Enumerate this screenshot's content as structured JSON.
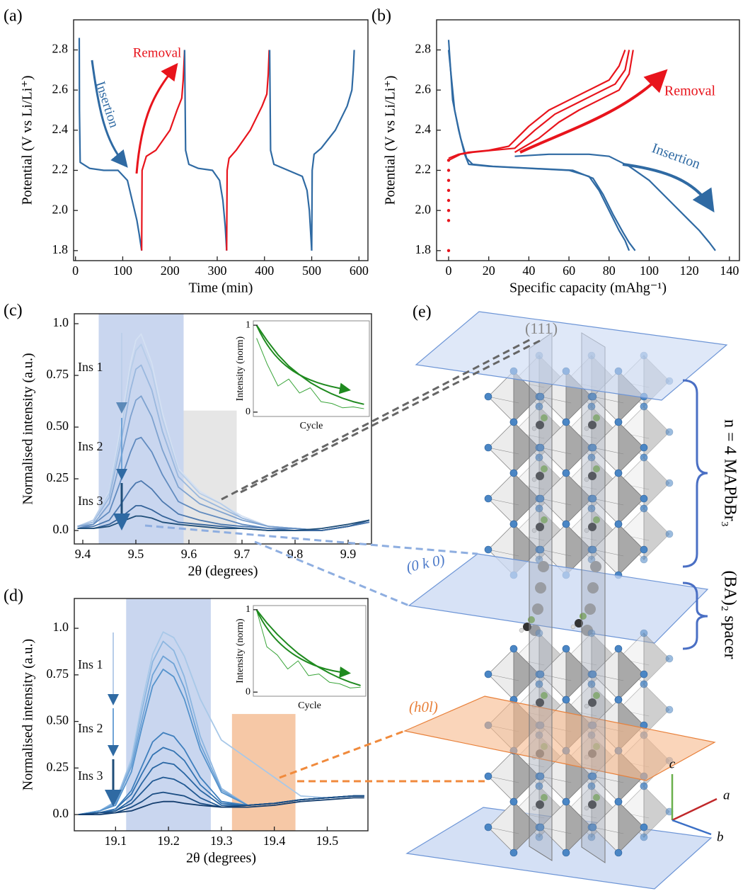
{
  "chart_data": [
    {
      "type": "line",
      "panel_label": "(a)",
      "xlabel": "Time (min)",
      "ylabel": "Potential (V vs Li/Li⁺)",
      "xlim": [
        -4,
        619
      ],
      "ylim": [
        1.75,
        2.95
      ],
      "xticks": [
        0,
        100,
        200,
        300,
        400,
        500,
        600
      ],
      "yticks": [
        1.8,
        {
          "value": 2,
          "label": "2.0"
        },
        2.2,
        2.4,
        2.6,
        2.8
      ],
      "annotations": [
        {
          "text": "Removal",
          "color": "#e8141c"
        },
        {
          "text": "Insertion",
          "color": "#2f6aa3"
        }
      ],
      "series": [
        {
          "color": "#2f6aa3",
          "x": [
            8,
            8.5,
            10,
            30,
            60,
            90,
            110,
            120,
            130,
            135,
            140
          ],
          "values": [
            2.86,
            2.5,
            2.24,
            2.21,
            2.2,
            2.2,
            2.15,
            2.05,
            1.95,
            1.88,
            1.8
          ]
        },
        {
          "color": "#e8141c",
          "x": [
            140,
            141,
            150,
            170,
            200,
            215,
            225,
            228,
            231
          ],
          "values": [
            1.8,
            2.2,
            2.27,
            2.3,
            2.4,
            2.5,
            2.56,
            2.65,
            2.8
          ]
        },
        {
          "color": "#2f6aa3",
          "x": [
            231,
            233,
            240,
            260,
            290,
            305,
            312,
            317,
            320
          ],
          "values": [
            2.8,
            2.3,
            2.23,
            2.21,
            2.2,
            2.15,
            2.05,
            1.92,
            1.8
          ]
        },
        {
          "color": "#e8141c",
          "x": [
            320,
            321,
            325,
            340,
            370,
            395,
            405,
            408,
            410
          ],
          "values": [
            1.8,
            2.2,
            2.26,
            2.3,
            2.4,
            2.52,
            2.58,
            2.68,
            2.8
          ]
        },
        {
          "color": "#2f6aa3",
          "x": [
            411,
            413,
            420,
            450,
            480,
            490,
            495,
            498,
            500
          ],
          "values": [
            2.8,
            2.3,
            2.23,
            2.2,
            2.17,
            2.1,
            2.0,
            1.88,
            1.8
          ]
        },
        {
          "color": "#2f6aa3",
          "x": [
            500,
            501,
            505,
            520,
            550,
            575,
            585,
            588,
            590
          ],
          "values": [
            1.8,
            2.2,
            2.28,
            2.31,
            2.4,
            2.52,
            2.6,
            2.7,
            2.8
          ]
        }
      ]
    },
    {
      "type": "line",
      "panel_label": "(b)",
      "xlabel": "Specific capacity (mAhg⁻¹)",
      "ylabel": "Potential (V vs Li/Li⁺)",
      "xlim": [
        -6,
        145
      ],
      "ylim": [
        1.75,
        2.95
      ],
      "xticks": [
        0,
        20,
        40,
        60,
        80,
        100,
        120,
        140
      ],
      "yticks": [
        1.8,
        {
          "value": 2,
          "label": "2.0"
        },
        2.2,
        2.4,
        2.6,
        2.8
      ],
      "annotations": [
        {
          "text": "Removal",
          "color": "#e8141c"
        },
        {
          "text": "Insertion",
          "color": "#2f6aa3"
        }
      ],
      "series": [
        {
          "color": "#2f6aa3",
          "x": [
            0,
            2,
            5,
            8,
            10,
            20,
            40,
            60,
            70,
            75,
            80,
            85,
            88,
            90
          ],
          "values": [
            2.85,
            2.55,
            2.4,
            2.28,
            2.23,
            2.22,
            2.21,
            2.2,
            2.17,
            2.1,
            2.0,
            1.9,
            1.85,
            1.8
          ]
        },
        {
          "color": "#2f6aa3",
          "x": [
            0,
            3,
            6,
            9,
            12,
            22,
            42,
            62,
            72,
            77,
            82,
            87,
            90,
            93
          ],
          "values": [
            2.8,
            2.5,
            2.36,
            2.26,
            2.23,
            2.22,
            2.21,
            2.2,
            2.16,
            2.08,
            1.98,
            1.89,
            1.84,
            1.8
          ]
        },
        {
          "color": "#2f6aa3",
          "x": [
            33,
            50,
            70,
            80,
            90,
            100,
            110,
            120,
            125,
            130,
            133
          ],
          "values": [
            2.27,
            2.28,
            2.28,
            2.27,
            2.22,
            2.15,
            2.05,
            1.95,
            1.9,
            1.84,
            1.8
          ]
        },
        {
          "color": "#e8141c",
          "x": [
            0,
            5,
            10,
            20,
            30,
            40,
            50,
            60,
            70,
            80,
            85,
            88
          ],
          "values": [
            2.26,
            2.28,
            2.29,
            2.3,
            2.32,
            2.42,
            2.5,
            2.55,
            2.6,
            2.65,
            2.72,
            2.8
          ]
        },
        {
          "color": "#e8141c",
          "x": [
            0,
            6,
            12,
            22,
            33,
            43,
            53,
            63,
            73,
            83,
            88,
            90
          ],
          "values": [
            2.25,
            2.28,
            2.29,
            2.3,
            2.31,
            2.4,
            2.48,
            2.53,
            2.58,
            2.63,
            2.7,
            2.8
          ]
        },
        {
          "color": "#e8141c",
          "x": [
            33,
            45,
            55,
            65,
            75,
            85,
            90,
            92
          ],
          "values": [
            2.29,
            2.36,
            2.44,
            2.5,
            2.55,
            2.6,
            2.68,
            2.8
          ]
        },
        {
          "color": "#e8141c",
          "markers": true,
          "x": [
            0,
            0,
            0,
            0,
            0,
            0,
            0,
            0
          ],
          "values": [
            1.8,
            1.95,
            2.0,
            2.05,
            2.1,
            2.15,
            2.2,
            2.25
          ]
        }
      ]
    },
    {
      "type": "line",
      "panel_label": "(c)",
      "xlabel": "2θ (degrees)",
      "ylabel": "Normalised intensity (a.u.)",
      "xlim": [
        9.384,
        9.944
      ],
      "ylim": [
        -0.065,
        1.048
      ],
      "xticks": [
        9.4,
        9.5,
        9.6,
        9.7,
        9.8,
        9.9
      ],
      "yticks": [
        {
          "value": 0,
          "label": "0.0"
        },
        0.25,
        {
          "value": 0.5,
          "label": "0.50"
        },
        0.75,
        {
          "value": 1,
          "label": "1.0"
        }
      ],
      "spans": [
        {
          "x": [
            9.43,
            9.59
          ],
          "color": "#c9d6ef"
        },
        {
          "x": [
            9.59,
            9.69
          ],
          "top": 0.58,
          "color": "#e6e6e6"
        }
      ],
      "annotations": [
        {
          "text": "Ins 1",
          "color": "#111"
        },
        {
          "text": "Ins 2",
          "color": "#111"
        },
        {
          "text": "Ins 3",
          "color": "#111"
        }
      ],
      "x": [
        9.39,
        9.42,
        9.45,
        9.47,
        9.49,
        9.5,
        9.51,
        9.53,
        9.55,
        9.58,
        9.62,
        9.66,
        9.7,
        9.75,
        9.8,
        9.85,
        9.9,
        9.94
      ],
      "series": [
        {
          "color": "#d3e0f2",
          "values": [
            0.02,
            0.05,
            0.19,
            0.48,
            0.81,
            0.92,
            0.95,
            0.81,
            0.57,
            0.3,
            0.19,
            0.13,
            0.07,
            0.02,
            0.01,
            0.0,
            0.02,
            0.04
          ]
        },
        {
          "color": "#b7cde9",
          "values": [
            0.02,
            0.05,
            0.18,
            0.45,
            0.77,
            0.87,
            0.9,
            0.77,
            0.54,
            0.29,
            0.18,
            0.13,
            0.06,
            0.02,
            0.01,
            0.0,
            0.02,
            0.04
          ]
        },
        {
          "color": "#9ab8de",
          "values": [
            0.02,
            0.04,
            0.16,
            0.4,
            0.68,
            0.78,
            0.8,
            0.68,
            0.48,
            0.26,
            0.16,
            0.11,
            0.06,
            0.02,
            0.01,
            0.0,
            0.02,
            0.04
          ]
        },
        {
          "color": "#7ea2cf",
          "values": [
            0.02,
            0.03,
            0.13,
            0.33,
            0.55,
            0.63,
            0.65,
            0.55,
            0.39,
            0.21,
            0.13,
            0.09,
            0.05,
            0.02,
            0.01,
            0.0,
            0.02,
            0.04
          ]
        },
        {
          "color": "#618bbf",
          "values": [
            0.01,
            0.03,
            0.09,
            0.23,
            0.38,
            0.44,
            0.45,
            0.38,
            0.27,
            0.14,
            0.09,
            0.06,
            0.03,
            0.01,
            0.01,
            0.0,
            0.02,
            0.04
          ]
        },
        {
          "color": "#4c78ae",
          "values": [
            0.01,
            0.02,
            0.05,
            0.12,
            0.2,
            0.23,
            0.24,
            0.2,
            0.14,
            0.08,
            0.05,
            0.03,
            0.02,
            0.01,
            0.0,
            0.0,
            0.02,
            0.04
          ]
        },
        {
          "color": "#36649a",
          "values": [
            0.01,
            0.01,
            0.03,
            0.06,
            0.1,
            0.12,
            0.12,
            0.1,
            0.07,
            0.04,
            0.03,
            0.02,
            0.01,
            0.0,
            0.0,
            0.0,
            0.02,
            0.05
          ]
        },
        {
          "color": "#1f4e79",
          "values": [
            0.01,
            0.01,
            0.02,
            0.04,
            0.06,
            0.07,
            0.07,
            0.06,
            0.04,
            0.03,
            0.02,
            0.01,
            0.01,
            0.0,
            0.0,
            0.01,
            0.03,
            0.05
          ]
        }
      ]
    },
    {
      "type": "line",
      "xlabel": "Cycle",
      "ylabel": "Intensity (norm)",
      "xlim": [
        -0.3,
        10.5
      ],
      "ylim": [
        -0.05,
        1.05
      ],
      "yticks": [
        0,
        1
      ],
      "x": [
        0,
        1,
        2,
        3,
        4,
        5,
        6,
        7,
        8,
        9,
        10
      ],
      "series": [
        {
          "color": "#1f8a1f",
          "values": [
            1,
            0.82,
            0.66,
            0.53,
            0.43,
            0.34,
            0.27,
            0.21,
            0.16,
            0.12,
            0.09
          ]
        },
        {
          "color": "#3aa53a",
          "values": [
            0.85,
            0.55,
            0.3,
            0.38,
            0.22,
            0.28,
            0.12,
            0.1,
            0.05,
            0.06,
            0.04
          ]
        }
      ]
    },
    {
      "type": "line",
      "panel_label": "(d)",
      "xlabel": "2θ (degrees)",
      "ylabel": "Normalised intensity (a.u.)",
      "xlim": [
        19.022,
        19.577
      ],
      "ylim": [
        -0.087,
        1.16
      ],
      "xticks": [
        19.1,
        19.2,
        19.3,
        19.4,
        19.5
      ],
      "yticks": [
        {
          "value": 0,
          "label": "0.0"
        },
        0.25,
        {
          "value": 0.5,
          "label": "0.50"
        },
        0.75,
        {
          "value": 1,
          "label": "1.0"
        }
      ],
      "spans": [
        {
          "x": [
            19.12,
            19.28
          ],
          "color": "#c9d6ef"
        },
        {
          "x": [
            19.32,
            19.44
          ],
          "top": 0.54,
          "color": "#f6c8a6"
        }
      ],
      "annotations": [
        {
          "text": "Ins 1",
          "color": "#111"
        },
        {
          "text": "Ins 2",
          "color": "#111"
        },
        {
          "text": "Ins 3",
          "color": "#111"
        }
      ],
      "x": [
        19.03,
        19.07,
        19.1,
        19.13,
        19.15,
        19.17,
        19.19,
        19.21,
        19.23,
        19.26,
        19.3,
        19.35,
        19.4,
        19.45,
        19.5,
        19.55,
        19.57
      ],
      "series": [
        {
          "color": "#a8c8e8",
          "values": [
            0.0,
            0.02,
            0.07,
            0.3,
            0.6,
            0.86,
            0.98,
            0.95,
            0.85,
            0.62,
            0.4,
            0.3,
            0.2,
            0.1,
            0.09,
            0.1,
            0.1
          ]
        },
        {
          "color": "#8cb6e0",
          "values": [
            0.0,
            0.02,
            0.07,
            0.28,
            0.56,
            0.82,
            0.93,
            0.88,
            0.74,
            0.42,
            0.14,
            0.05,
            0.06,
            0.08,
            0.09,
            0.1,
            0.1
          ]
        },
        {
          "color": "#6fa3d6",
          "values": [
            0.0,
            0.02,
            0.06,
            0.26,
            0.51,
            0.75,
            0.85,
            0.81,
            0.68,
            0.38,
            0.13,
            0.05,
            0.06,
            0.08,
            0.09,
            0.1,
            0.1
          ]
        },
        {
          "color": "#5593cc",
          "values": [
            0.0,
            0.02,
            0.05,
            0.23,
            0.47,
            0.69,
            0.78,
            0.74,
            0.62,
            0.35,
            0.12,
            0.05,
            0.06,
            0.08,
            0.09,
            0.1,
            0.1
          ]
        },
        {
          "color": "#3f7fbd",
          "values": [
            0.0,
            0.01,
            0.03,
            0.13,
            0.26,
            0.39,
            0.44,
            0.42,
            0.35,
            0.2,
            0.07,
            0.05,
            0.06,
            0.08,
            0.09,
            0.1,
            0.1
          ]
        },
        {
          "color": "#3373b1",
          "values": [
            0.0,
            0.01,
            0.03,
            0.11,
            0.22,
            0.32,
            0.36,
            0.34,
            0.29,
            0.16,
            0.06,
            0.05,
            0.06,
            0.08,
            0.09,
            0.1,
            0.1
          ]
        },
        {
          "color": "#2966a3",
          "values": [
            0.0,
            0.01,
            0.02,
            0.08,
            0.17,
            0.25,
            0.28,
            0.27,
            0.22,
            0.13,
            0.05,
            0.05,
            0.06,
            0.08,
            0.09,
            0.1,
            0.1
          ]
        },
        {
          "color": "#215993",
          "values": [
            0.0,
            0.01,
            0.02,
            0.06,
            0.12,
            0.18,
            0.2,
            0.19,
            0.16,
            0.09,
            0.04,
            0.05,
            0.06,
            0.08,
            0.09,
            0.1,
            0.1
          ]
        },
        {
          "color": "#1a4c82",
          "values": [
            0.0,
            0.01,
            0.01,
            0.04,
            0.07,
            0.11,
            0.12,
            0.11,
            0.1,
            0.06,
            0.04,
            0.05,
            0.06,
            0.08,
            0.09,
            0.1,
            0.1
          ]
        },
        {
          "color": "#133d6e",
          "values": [
            0.0,
            0.0,
            0.01,
            0.02,
            0.04,
            0.06,
            0.07,
            0.07,
            0.06,
            0.05,
            0.04,
            0.04,
            0.05,
            0.07,
            0.08,
            0.09,
            0.09
          ]
        }
      ]
    },
    {
      "type": "line",
      "xlabel": "Cycle",
      "ylabel": "Intensity (norm)",
      "xlim": [
        -0.3,
        10.5
      ],
      "ylim": [
        -0.05,
        1.05
      ],
      "yticks": [
        0,
        1
      ],
      "x": [
        0,
        1,
        2,
        3,
        4,
        5,
        6,
        7,
        8,
        9,
        10
      ],
      "series": [
        {
          "color": "#1f8a1f",
          "values": [
            1,
            0.84,
            0.7,
            0.58,
            0.47,
            0.38,
            0.3,
            0.23,
            0.17,
            0.12,
            0.08
          ]
        },
        {
          "color": "#3aa53a",
          "values": [
            1,
            0.55,
            0.45,
            0.28,
            0.38,
            0.2,
            0.22,
            0.12,
            0.1,
            0.05,
            0.06
          ]
        }
      ]
    }
  ],
  "diagram": {
    "panel_label": "(e)",
    "plane_top": "(111)",
    "plane_mid": "(0 k 0)",
    "plane_orange": "(h0l)",
    "block_label": "n = 4 MAPbBr₃",
    "spacer_label": "(BA)₂ spacer",
    "axis_a": "a",
    "axis_b": "b",
    "axis_c": "c"
  }
}
